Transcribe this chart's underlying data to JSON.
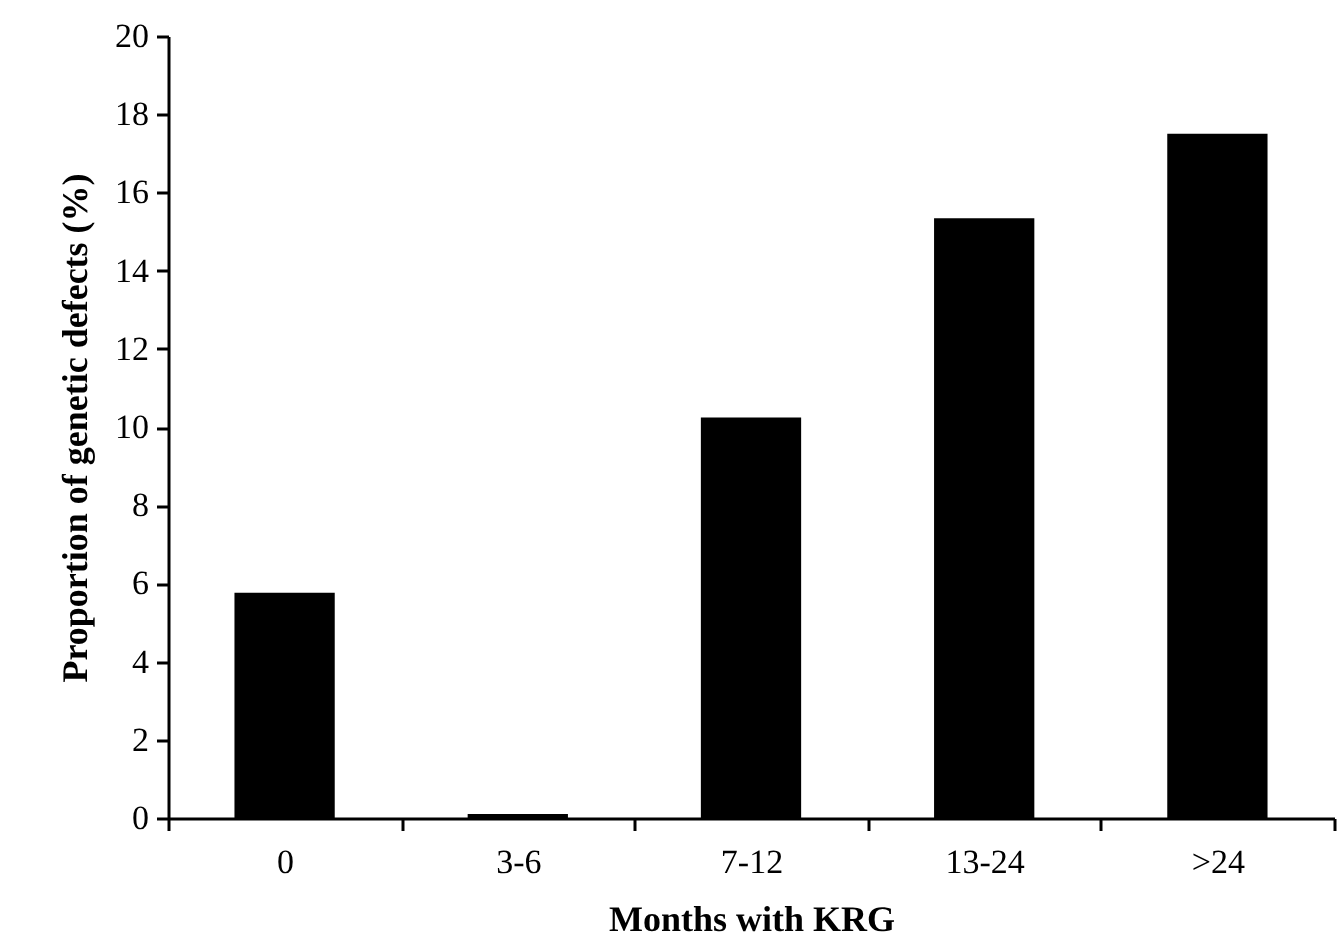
{
  "chart_data": {
    "type": "bar",
    "xlabel": "Months with KRG",
    "ylabel": "Proportion of genetic defects (%)",
    "categories": [
      "0",
      "3-6",
      "7-12",
      "13-24",
      ">24"
    ],
    "values": [
      5.76,
      0.1,
      10.24,
      15.34,
      17.5
    ],
    "color": "#000000",
    "ylim": [
      0,
      20
    ],
    "yticks": [
      0,
      2,
      4,
      6,
      8,
      10,
      12,
      14,
      16,
      18,
      20
    ],
    "grid": false
  }
}
